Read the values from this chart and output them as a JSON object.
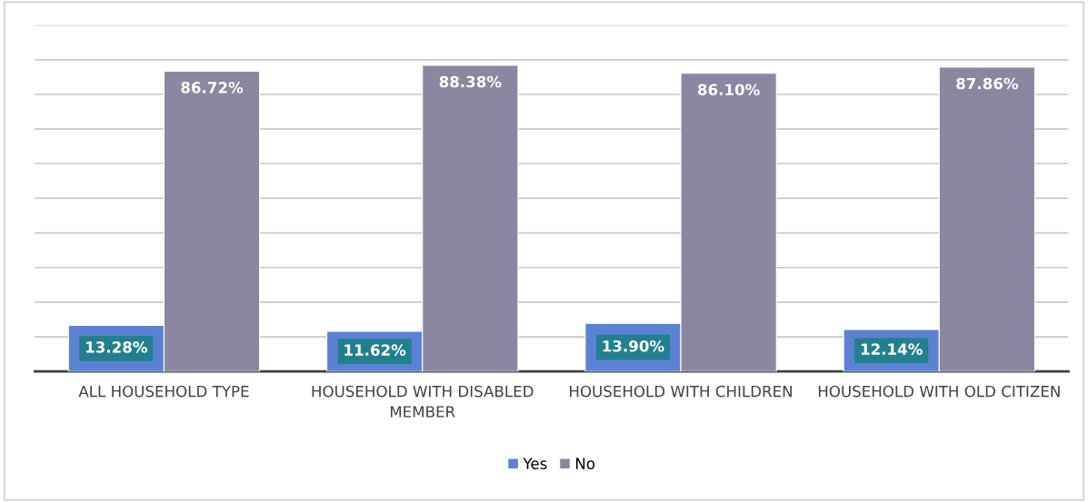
{
  "chart_data": {
    "type": "bar",
    "categories": [
      "ALL HOUSEHOLD TYPE",
      "HOUSEHOLD WITH DISABLED MEMBER",
      "HOUSEHOLD WITH CHILDREN",
      "HOUSEHOLD WITH OLD CITIZEN"
    ],
    "series": [
      {
        "name": "Yes",
        "color": "#5b82d2",
        "values": [
          13.28,
          11.62,
          13.9,
          12.14
        ],
        "value_labels": [
          "13.28%",
          "11.62%",
          "13.90%",
          "12.14%"
        ]
      },
      {
        "name": "No",
        "color": "#8b87a0",
        "values": [
          86.72,
          88.38,
          86.1,
          87.86
        ],
        "value_labels": [
          "86.72%",
          "88.38%",
          "86.10%",
          "87.86%"
        ]
      }
    ],
    "ylim": [
      0,
      100
    ],
    "yticks": [
      {
        "value": 0,
        "label": null
      },
      {
        "value": 10,
        "label": null
      },
      {
        "value": 20,
        "label": null
      },
      {
        "value": 30,
        "label": null
      },
      {
        "value": 40,
        "label": null
      },
      {
        "value": 50,
        "label": null
      },
      {
        "value": 60,
        "label": null
      },
      {
        "value": 70,
        "label": null
      },
      {
        "value": 80,
        "label": null
      },
      {
        "value": 90,
        "label": null
      },
      {
        "value": 100,
        "label": null
      }
    ],
    "grid": "y",
    "legend": "bottom",
    "tick_labels": "x"
  }
}
